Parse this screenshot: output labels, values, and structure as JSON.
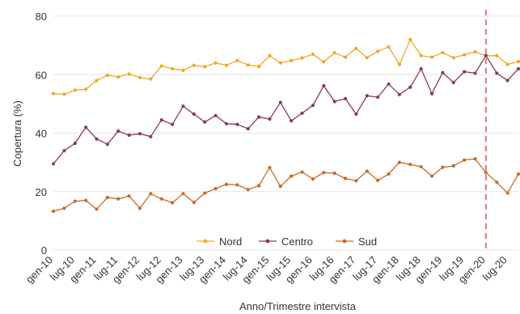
{
  "chart_data": {
    "type": "line",
    "xlabel": "Anno/Trimestre intervista",
    "ylabel": "Copertura (%)",
    "ylim": [
      0,
      80
    ],
    "yticks": [
      0,
      20,
      40,
      60,
      80
    ],
    "grid": "horizontal",
    "legend_position": "bottom-center",
    "x": [
      "gen-10",
      "apr-10",
      "lug-10",
      "ott-10",
      "gen-11",
      "apr-11",
      "lug-11",
      "ott-11",
      "gen-12",
      "apr-12",
      "lug-12",
      "ott-12",
      "gen-13",
      "apr-13",
      "lug-13",
      "ott-13",
      "gen-14",
      "apr-14",
      "lug-14",
      "ott-14",
      "gen-15",
      "apr-15",
      "lug-15",
      "ott-15",
      "gen-16",
      "apr-16",
      "lug-16",
      "ott-16",
      "gen-17",
      "apr-17",
      "lug-17",
      "ott-17",
      "gen-18",
      "apr-18",
      "lug-18",
      "ott-18",
      "gen-19",
      "apr-19",
      "lug-19",
      "ott-19",
      "gen-20",
      "apr-20",
      "lug-20",
      "ott-20"
    ],
    "xtick_labels": [
      "gen-10",
      "lug-10",
      "gen-11",
      "lug-11",
      "gen-12",
      "lug-12",
      "gen-13",
      "lug-13",
      "gen-14",
      "lug-14",
      "gen-15",
      "lug-15",
      "gen-16",
      "lug-16",
      "gen-17",
      "lug-17",
      "gen-18",
      "lug-18",
      "gen-19",
      "lug-19",
      "gen-20",
      "lug-20"
    ],
    "reference_line": {
      "x": "gen-20",
      "color": "#e05050",
      "style": "dashed"
    },
    "series": [
      {
        "name": "Nord",
        "color": "#f5a623",
        "values": [
          53.5,
          53.3,
          54.7,
          55.0,
          58.0,
          59.8,
          59.2,
          60.2,
          59.0,
          58.5,
          63.0,
          62.0,
          61.5,
          63.2,
          62.7,
          64.0,
          63.2,
          64.8,
          63.3,
          62.8,
          66.5,
          64.0,
          64.8,
          65.7,
          67.0,
          64.4,
          67.5,
          66.0,
          69.0,
          65.8,
          68.0,
          69.5,
          63.5,
          72.0,
          66.5,
          66.0,
          67.5,
          65.8,
          66.8,
          67.8,
          66.5,
          66.5,
          63.5,
          64.5
        ]
      },
      {
        "name": "Centro",
        "color": "#8b3a5a",
        "values": [
          29.5,
          34.0,
          36.5,
          42.0,
          38.0,
          36.2,
          40.7,
          39.3,
          39.8,
          38.8,
          44.5,
          43.0,
          49.2,
          46.5,
          43.8,
          46.0,
          43.2,
          43.0,
          41.5,
          45.5,
          44.8,
          50.5,
          44.2,
          46.8,
          49.5,
          56.2,
          50.8,
          51.8,
          46.5,
          52.8,
          52.3,
          56.8,
          53.2,
          55.7,
          62.0,
          53.5,
          60.7,
          57.3,
          61.0,
          60.5,
          66.5,
          60.5,
          58.0,
          62.0
        ]
      },
      {
        "name": "Sud",
        "color": "#c96a28",
        "values": [
          13.3,
          14.3,
          16.7,
          17.0,
          14.0,
          18.0,
          17.5,
          18.5,
          14.3,
          19.3,
          17.5,
          16.2,
          19.3,
          16.3,
          19.5,
          21.0,
          22.5,
          22.3,
          20.7,
          22.0,
          28.2,
          21.8,
          25.3,
          26.7,
          24.3,
          26.5,
          26.3,
          24.5,
          23.7,
          27.0,
          23.8,
          26.0,
          30.0,
          29.3,
          28.5,
          25.3,
          28.3,
          28.8,
          30.8,
          31.2,
          26.5,
          23.2,
          19.5,
          26.0
        ]
      }
    ]
  }
}
